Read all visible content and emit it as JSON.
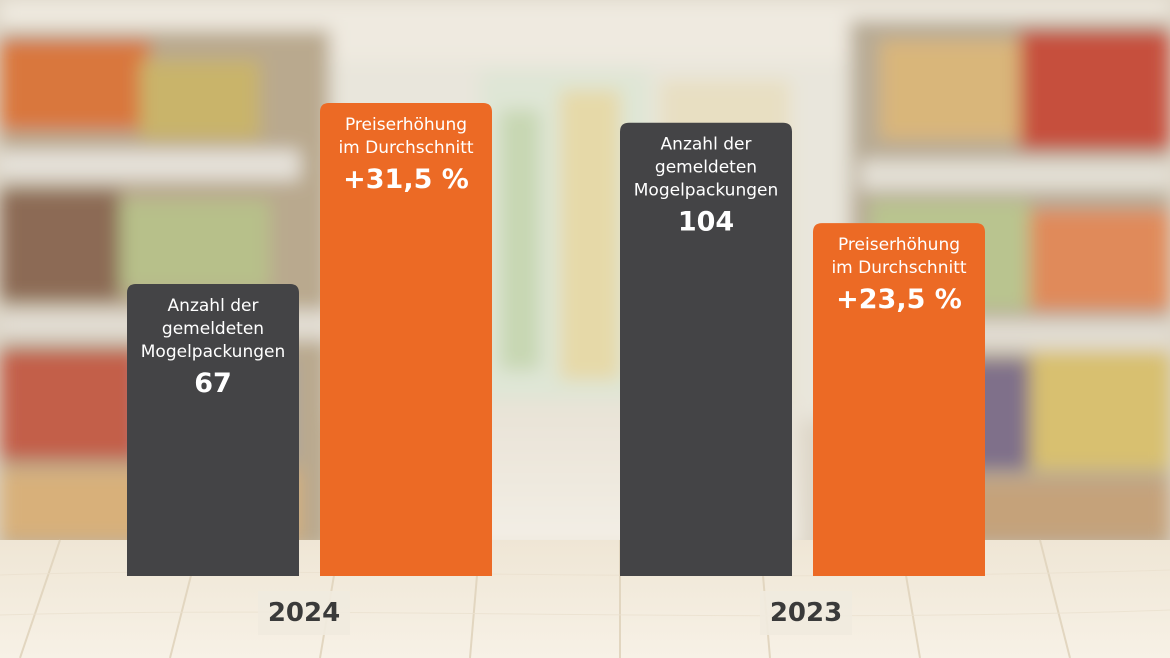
{
  "colors": {
    "count_bar": "#444446",
    "price_bar": "#ec6a25",
    "label_text": "#ffffff",
    "year_text": "#3a3a3a"
  },
  "chart_data": {
    "type": "bar",
    "title": "",
    "xlabel": "",
    "ylabel": "",
    "grid": false,
    "categories": [
      "2024",
      "2023"
    ],
    "series": [
      {
        "name": "Anzahl der gemeldeten Mogelpackungen",
        "caption_lines": [
          "Anzahl der",
          "gemeldeten",
          "Mogelpackungen"
        ],
        "values": [
          67,
          104
        ],
        "value_labels": [
          "67",
          "104"
        ]
      },
      {
        "name": "Preiserhöhung im Durchschnitt",
        "caption_lines": [
          "Preiserhöhung",
          "im Durchschnitt"
        ],
        "values": [
          31.5,
          23.5
        ],
        "value_labels": [
          "+31,5 %",
          "+23,5 %"
        ]
      }
    ]
  }
}
